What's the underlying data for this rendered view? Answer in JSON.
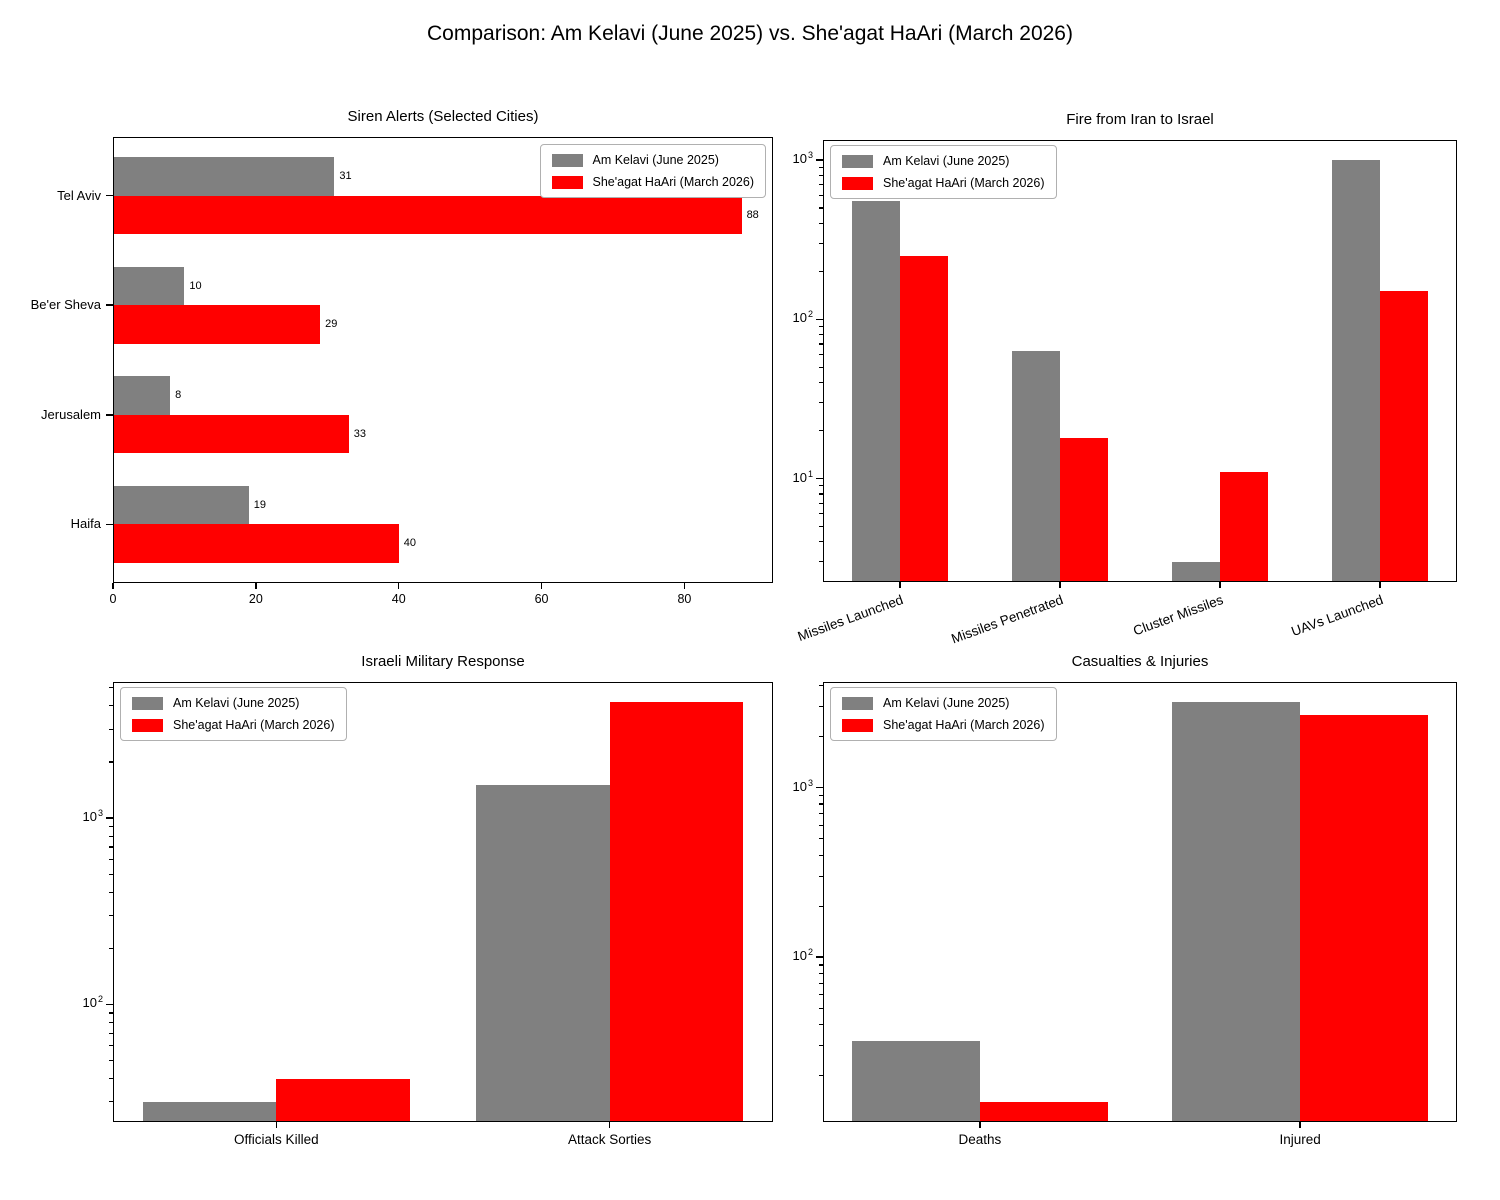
{
  "figure_title": "Comparison: Am Kelavi (June 2025) vs. She'agat HaAri (March 2026)",
  "legend": {
    "series": [
      {
        "label": "Am Kelavi (June 2025)",
        "color": "#808080"
      },
      {
        "label": "She'agat HaAri (March 2026)",
        "color": "#ff0000"
      }
    ]
  },
  "chart_data": [
    {
      "id": "siren-alerts",
      "type": "bar",
      "orientation": "horizontal",
      "scale": "linear",
      "title": "Siren Alerts (Selected Cities)",
      "categories": [
        "Tel Aviv",
        "Be'er Sheva",
        "Jerusalem",
        "Haifa"
      ],
      "series": [
        {
          "name": "Am Kelavi (June 2025)",
          "color": "#808080",
          "values": [
            31,
            10,
            8,
            19
          ]
        },
        {
          "name": "She'agat HaAri (March 2026)",
          "color": "#ff0000",
          "values": [
            88,
            29,
            33,
            40
          ]
        }
      ],
      "bar_value_labels": true,
      "xlim": [
        0,
        92.4
      ],
      "xticks": [
        0,
        20,
        40,
        60,
        80
      ],
      "grid": false,
      "legend_position": "upper right"
    },
    {
      "id": "fire-from-iran",
      "type": "bar",
      "orientation": "vertical",
      "scale": "log",
      "title": "Fire from Iran to Israel",
      "categories": [
        "Missiles Launched",
        "Missiles Penetrated",
        "Cluster Missiles",
        "UAVs Launched"
      ],
      "series": [
        {
          "name": "Am Kelavi (June 2025)",
          "color": "#808080",
          "values": [
            550,
            63,
            3,
            1000
          ]
        },
        {
          "name": "She'agat HaAri (March 2026)",
          "color": "#ff0000",
          "values": [
            250,
            18,
            11,
            150
          ]
        }
      ],
      "bar_value_labels": false,
      "ylim": [
        2.24,
        1337
      ],
      "ytick_exponents": [
        3,
        2,
        1
      ],
      "xtick_rotation": 20,
      "grid": false,
      "legend_position": "upper left"
    },
    {
      "id": "israeli-military-response",
      "type": "bar",
      "orientation": "vertical",
      "scale": "log",
      "title": "Israeli Military Response",
      "categories": [
        "Officials Killed",
        "Attack Sorties"
      ],
      "series": [
        {
          "name": "Am Kelavi (June 2025)",
          "color": "#808080",
          "values": [
            30,
            1500
          ]
        },
        {
          "name": "She'agat HaAri (March 2026)",
          "color": "#ff0000",
          "values": [
            40,
            4200
          ]
        }
      ],
      "bar_value_labels": false,
      "ylim": [
        23.4,
        5370
      ],
      "ytick_exponents": [
        3,
        2
      ],
      "xtick_rotation": 0,
      "grid": false,
      "legend_position": "upper left"
    },
    {
      "id": "casualties-injuries",
      "type": "bar",
      "orientation": "vertical",
      "scale": "log",
      "title": "Casualties & Injuries",
      "categories": [
        "Deaths",
        "Injured"
      ],
      "series": [
        {
          "name": "Am Kelavi (June 2025)",
          "color": "#808080",
          "values": [
            32,
            3200
          ]
        },
        {
          "name": "She'agat HaAri (March 2026)",
          "color": "#ff0000",
          "values": [
            14,
            2700
          ]
        }
      ],
      "bar_value_labels": false,
      "ylim": [
        10.67,
        4198
      ],
      "ytick_exponents": [
        3,
        2
      ],
      "xtick_rotation": 0,
      "grid": false,
      "legend_position": "upper left"
    }
  ]
}
